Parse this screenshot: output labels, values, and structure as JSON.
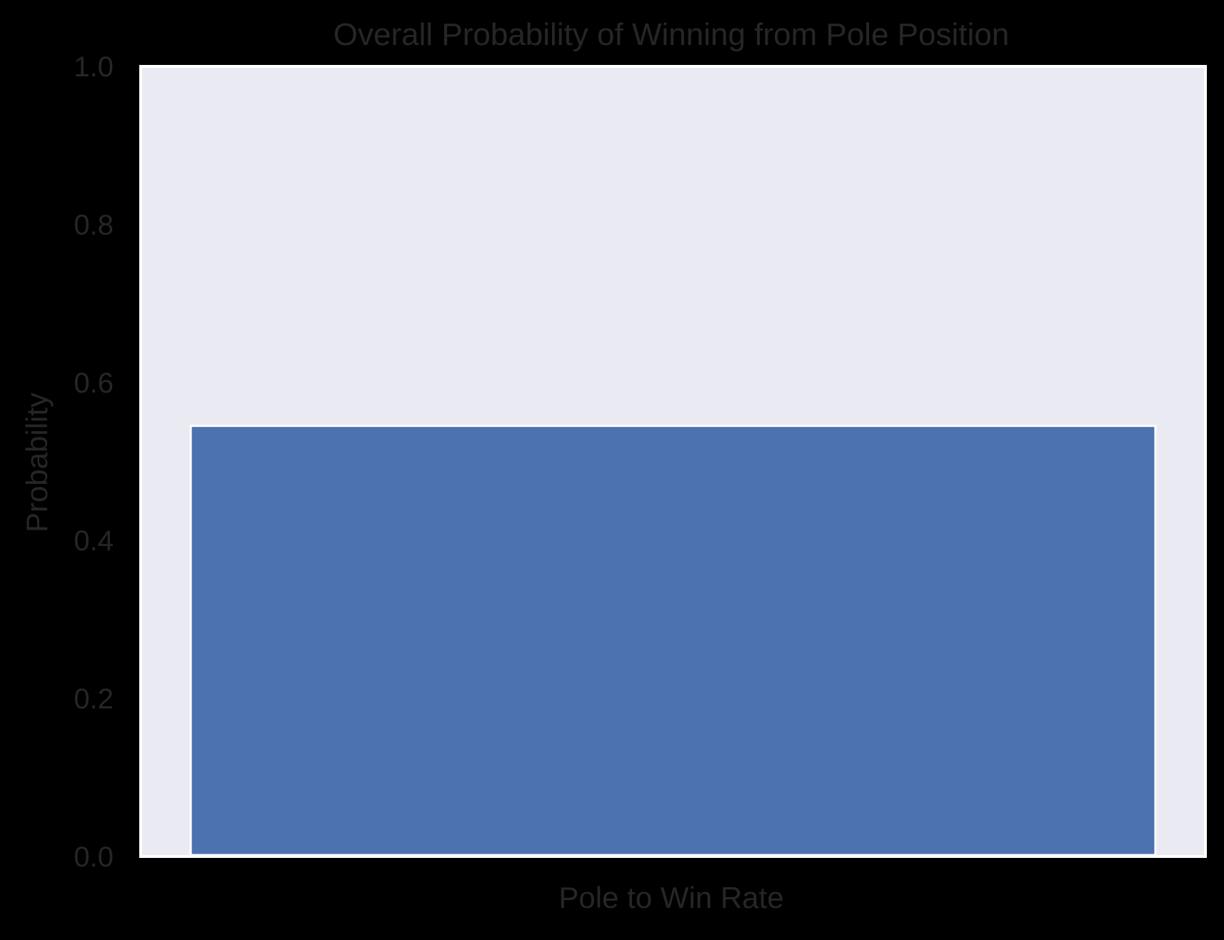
{
  "chart_data": {
    "type": "bar",
    "title": "Overall Probability of Winning from Pole Position",
    "xlabel": "Pole to Win Rate",
    "ylabel": "Probability",
    "categories": [
      ""
    ],
    "values": [
      0.545
    ],
    "ylim": [
      0,
      1.0
    ],
    "yticks": [
      "0.0",
      "0.2",
      "0.4",
      "0.6",
      "0.8",
      "1.0"
    ],
    "grid": false,
    "legend": "none",
    "colors": {
      "figure_background": "#000000",
      "plot_background": "#eaeaf2",
      "bar": "#4c72b0",
      "bar_edge": "#ffffff",
      "text": "#262626",
      "frame": "#ffffff"
    }
  }
}
